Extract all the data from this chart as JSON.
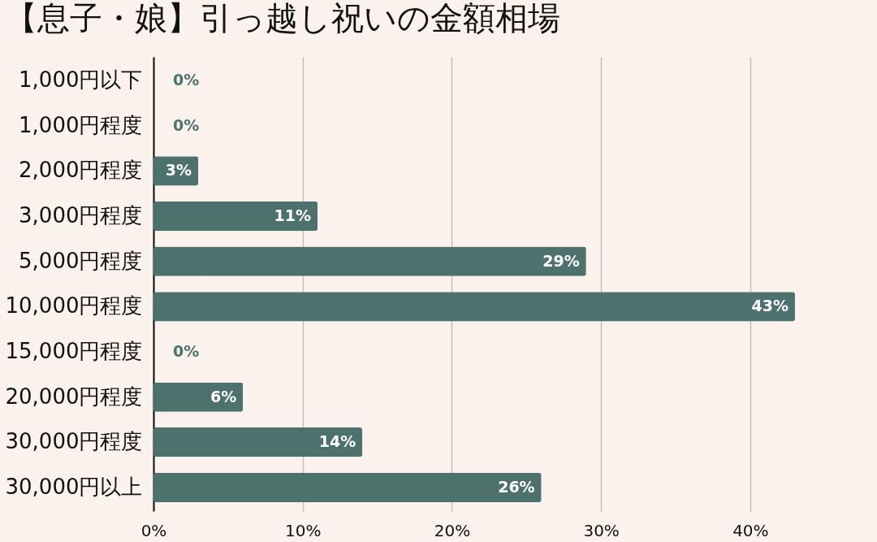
{
  "chart_data": {
    "type": "bar",
    "orientation": "horizontal",
    "title": "【息子・娘】引っ越し祝いの金額相場",
    "categories": [
      "1,000円以下",
      "1,000円程度",
      "2,000円程度",
      "3,000円程度",
      "5,000円程度",
      "10,000円程度",
      "15,000円程度",
      "20,000円程度",
      "30,000円程度",
      "30,000円以上"
    ],
    "values": [
      0,
      0,
      3,
      11,
      29,
      43,
      0,
      6,
      14,
      26
    ],
    "value_labels": [
      "0%",
      "0%",
      "3%",
      "11%",
      "29%",
      "43%",
      "0%",
      "6%",
      "14%",
      "26%"
    ],
    "color": "#4d716d",
    "xlim": [
      0,
      48.5
    ],
    "xticks": [
      {
        "value": 0,
        "label": "0%"
      },
      {
        "value": 10,
        "label": "10%"
      },
      {
        "value": 20,
        "label": "20%"
      },
      {
        "value": 30,
        "label": "30%"
      },
      {
        "value": 40,
        "label": "40%"
      }
    ],
    "grid": "x"
  }
}
